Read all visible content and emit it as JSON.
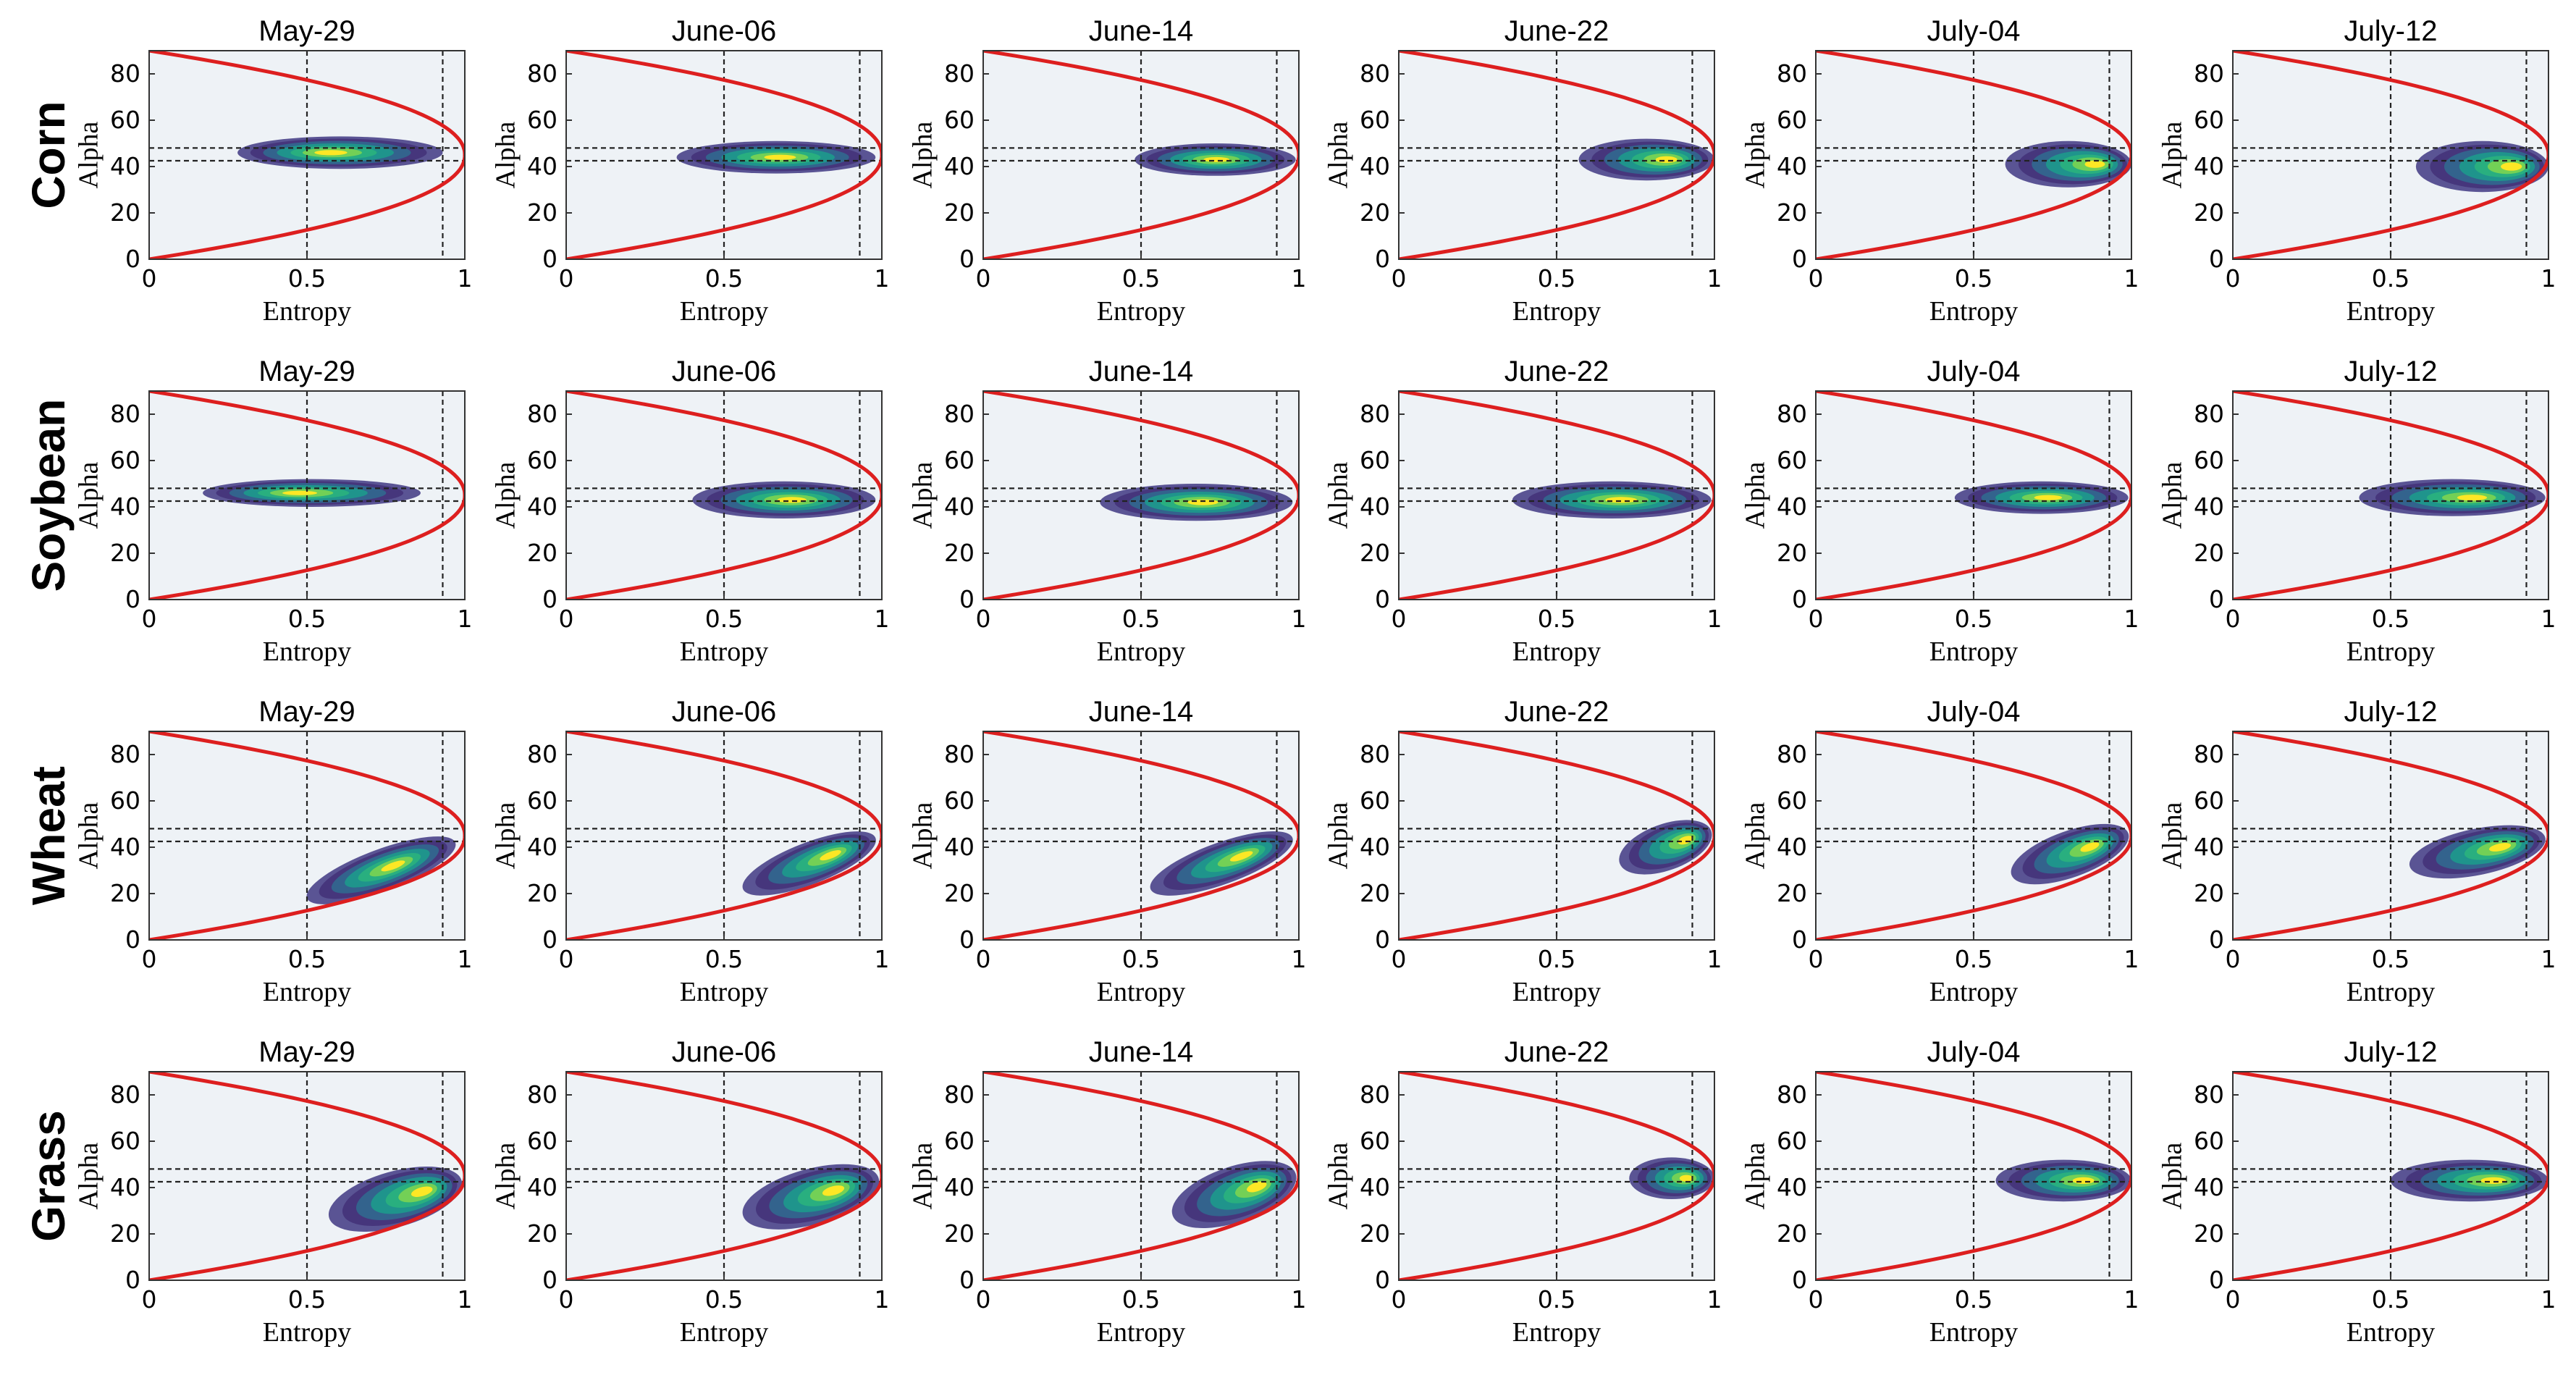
{
  "chart_data": {
    "type": "heatmap",
    "description_of_axes": "H-alpha feature space density plots",
    "dates": [
      "May-29",
      "June-06",
      "June-14",
      "June-22",
      "July-04",
      "July-12"
    ],
    "crops": [
      "Corn",
      "Soybean",
      "Wheat",
      "Grass"
    ],
    "xlabel": "Entropy",
    "ylabel": "Alpha",
    "xlim": [
      0,
      1
    ],
    "ylim": [
      0,
      90
    ],
    "xticks": [
      "0",
      "0.5",
      "1"
    ],
    "yticks": [
      "0",
      "20",
      "40",
      "60",
      "80"
    ],
    "reference_lines": {
      "entropy_vertical": [
        0.5,
        0.93
      ],
      "alpha_horizontal": [
        42.5,
        48
      ]
    },
    "boundary_curve": "feasible H-alpha region, red curve from (0,0) to (1,45) to (0,90)",
    "density_clusters": [
      [
        {
          "entropy_range": [
            0.28,
            0.93
          ],
          "alpha_center": 46,
          "peak_entropy": 0.57,
          "spread": 7
        },
        {
          "entropy_range": [
            0.35,
            0.98
          ],
          "alpha_center": 44,
          "peak_entropy": 0.68,
          "spread": 7
        },
        {
          "entropy_range": [
            0.48,
            0.99
          ],
          "alpha_center": 43,
          "peak_entropy": 0.74,
          "spread": 7
        },
        {
          "entropy_range": [
            0.57,
            1.0
          ],
          "alpha_center": 43,
          "peak_entropy": 0.86,
          "spread": 9
        },
        {
          "entropy_range": [
            0.6,
            1.0
          ],
          "alpha_center": 41,
          "peak_entropy": 0.9,
          "spread": 10
        },
        {
          "entropy_range": [
            0.58,
            1.0
          ],
          "alpha_center": 40,
          "peak_entropy": 0.9,
          "spread": 11
        }
      ],
      [
        {
          "entropy_range": [
            0.17,
            0.86
          ],
          "alpha_center": 46,
          "peak_entropy": 0.47,
          "spread": 6
        },
        {
          "entropy_range": [
            0.4,
            0.98
          ],
          "alpha_center": 43,
          "peak_entropy": 0.72,
          "spread": 8
        },
        {
          "entropy_range": [
            0.37,
            0.98
          ],
          "alpha_center": 42,
          "peak_entropy": 0.7,
          "spread": 8
        },
        {
          "entropy_range": [
            0.36,
            0.99
          ],
          "alpha_center": 43,
          "peak_entropy": 0.71,
          "spread": 8
        },
        {
          "entropy_range": [
            0.44,
            0.99
          ],
          "alpha_center": 44,
          "peak_entropy": 0.74,
          "spread": 7
        },
        {
          "entropy_range": [
            0.4,
            0.99
          ],
          "alpha_center": 44,
          "peak_entropy": 0.77,
          "spread": 8
        }
      ],
      [
        {
          "entropy_range": [
            0.5,
            0.97
          ],
          "alpha_start": 18,
          "alpha_end": 42,
          "peak_entropy": 0.78,
          "spread": 9
        },
        {
          "entropy_range": [
            0.56,
            0.98
          ],
          "alpha_start": 22,
          "alpha_end": 44,
          "peak_entropy": 0.85,
          "spread": 9
        },
        {
          "entropy_range": [
            0.53,
            0.98
          ],
          "alpha_start": 22,
          "alpha_end": 44,
          "peak_entropy": 0.83,
          "spread": 9
        },
        {
          "entropy_range": [
            0.7,
            0.99
          ],
          "alpha_start": 33,
          "alpha_end": 47,
          "peak_entropy": 0.92,
          "spread": 10
        },
        {
          "entropy_range": [
            0.62,
            0.99
          ],
          "alpha_start": 28,
          "alpha_end": 46,
          "peak_entropy": 0.88,
          "spread": 10
        },
        {
          "entropy_range": [
            0.56,
            0.99
          ],
          "alpha_start": 32,
          "alpha_end": 44,
          "peak_entropy": 0.86,
          "spread": 10
        }
      ],
      [
        {
          "entropy_range": [
            0.57,
            0.99
          ],
          "alpha_start": 27,
          "alpha_end": 43,
          "peak_entropy": 0.88,
          "spread": 12
        },
        {
          "entropy_range": [
            0.56,
            0.99
          ],
          "alpha_start": 28,
          "alpha_end": 44,
          "peak_entropy": 0.86,
          "spread": 12
        },
        {
          "entropy_range": [
            0.6,
            0.99
          ],
          "alpha_start": 28,
          "alpha_end": 46,
          "peak_entropy": 0.88,
          "spread": 12
        },
        {
          "entropy_range": [
            0.73,
            1.0
          ],
          "alpha_center": 44,
          "peak_entropy": 0.92,
          "spread": 9
        },
        {
          "entropy_range": [
            0.57,
            1.0
          ],
          "alpha_center": 43,
          "peak_entropy": 0.86,
          "spread": 9
        },
        {
          "entropy_range": [
            0.5,
            1.0
          ],
          "alpha_center": 43,
          "peak_entropy": 0.84,
          "spread": 9
        }
      ]
    ],
    "colors": {
      "background": "#eef2f6",
      "boundary": "#dd1f1f",
      "density_levels": [
        "#5a5494",
        "#46367c",
        "#33638d",
        "#1f948c",
        "#29af7f",
        "#73d056",
        "#fde725"
      ]
    }
  }
}
